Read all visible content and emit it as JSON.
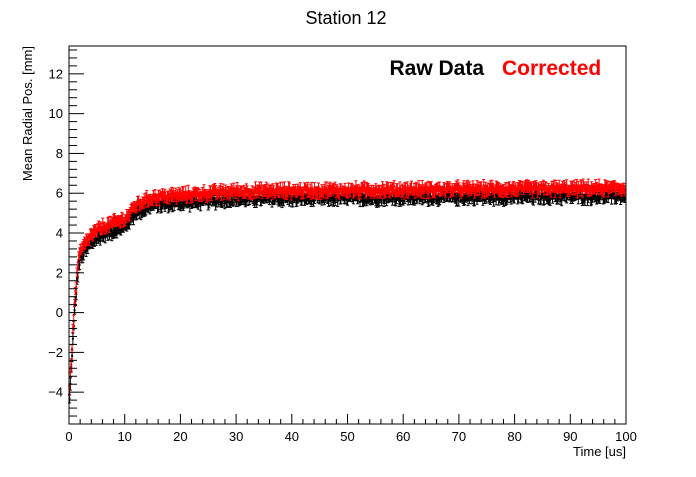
{
  "chart_data": {
    "type": "scatter",
    "title": "Station 12",
    "xlabel": "Time [us]",
    "ylabel": "Mean Radial Pos. [mm]",
    "xlim": [
      0,
      100
    ],
    "ylim": [
      -5.6,
      13.4
    ],
    "x_ticks": [
      0,
      10,
      20,
      30,
      40,
      50,
      60,
      70,
      80,
      90,
      100
    ],
    "y_ticks": [
      -4,
      -2,
      0,
      2,
      4,
      6,
      8,
      10,
      12
    ],
    "grid": false,
    "legend_placement": "top-right",
    "series": [
      {
        "name": "Raw Data",
        "color": "#000000",
        "marker": "dot-with-error-bars",
        "error_bar": 0.22,
        "anchors": [
          {
            "x": 0.1,
            "y": -4.4
          },
          {
            "x": 0.3,
            "y": -3.4
          },
          {
            "x": 0.5,
            "y": -2.2
          },
          {
            "x": 0.8,
            "y": -1.0
          },
          {
            "x": 1.0,
            "y": 0.0
          },
          {
            "x": 1.3,
            "y": 1.1
          },
          {
            "x": 1.6,
            "y": 2.0
          },
          {
            "x": 2.0,
            "y": 2.7
          },
          {
            "x": 3.0,
            "y": 3.1
          },
          {
            "x": 4.0,
            "y": 3.5
          },
          {
            "x": 6.0,
            "y": 3.9
          },
          {
            "x": 8.0,
            "y": 4.1
          },
          {
            "x": 10.0,
            "y": 4.3
          },
          {
            "x": 12.0,
            "y": 5.0
          },
          {
            "x": 15.0,
            "y": 5.4
          },
          {
            "x": 20.0,
            "y": 5.5
          },
          {
            "x": 30.0,
            "y": 5.7
          },
          {
            "x": 50.0,
            "y": 5.75
          },
          {
            "x": 70.0,
            "y": 5.8
          },
          {
            "x": 100.0,
            "y": 5.85
          }
        ]
      },
      {
        "name": "Corrected",
        "color": "#ff0000",
        "marker": "dot-with-error-bars",
        "error_bar": 0.22,
        "anchors": [
          {
            "x": 0.1,
            "y": -4.0
          },
          {
            "x": 0.3,
            "y": -3.0
          },
          {
            "x": 0.5,
            "y": -1.8
          },
          {
            "x": 0.8,
            "y": -0.6
          },
          {
            "x": 1.0,
            "y": 0.4
          },
          {
            "x": 1.3,
            "y": 1.5
          },
          {
            "x": 1.6,
            "y": 2.4
          },
          {
            "x": 2.0,
            "y": 3.0
          },
          {
            "x": 3.0,
            "y": 3.5
          },
          {
            "x": 4.0,
            "y": 3.9
          },
          {
            "x": 6.0,
            "y": 4.3
          },
          {
            "x": 8.0,
            "y": 4.5
          },
          {
            "x": 10.0,
            "y": 4.7
          },
          {
            "x": 12.0,
            "y": 5.4
          },
          {
            "x": 15.0,
            "y": 5.8
          },
          {
            "x": 20.0,
            "y": 5.9
          },
          {
            "x": 30.0,
            "y": 6.1
          },
          {
            "x": 50.0,
            "y": 6.15
          },
          {
            "x": 70.0,
            "y": 6.2
          },
          {
            "x": 100.0,
            "y": 6.25
          }
        ]
      }
    ]
  },
  "legend": {
    "raw_label": "Raw Data",
    "corrected_label": "Corrected"
  }
}
